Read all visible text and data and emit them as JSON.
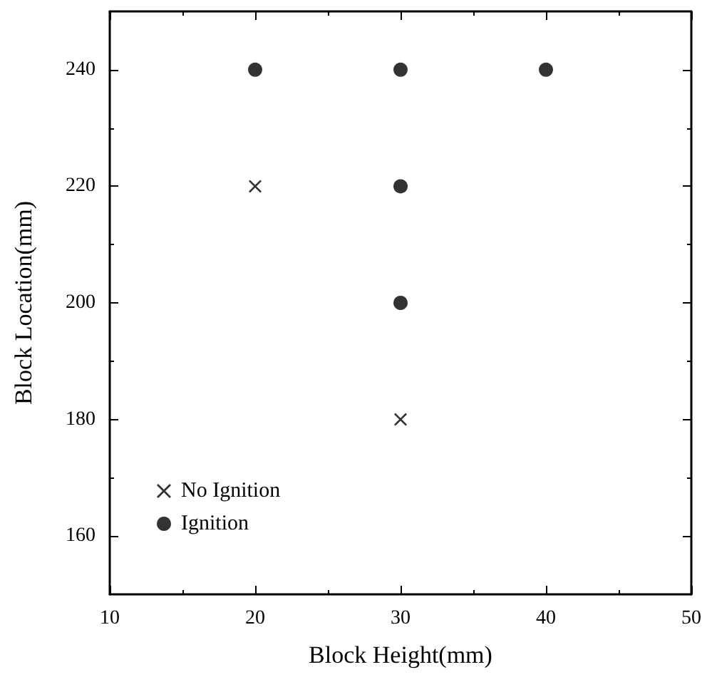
{
  "chart_data": {
    "type": "scatter",
    "xlabel": "Block Height(mm)",
    "ylabel": "Block Location(mm)",
    "xlim": [
      10,
      50
    ],
    "xticks": [
      10,
      20,
      30,
      40,
      50
    ],
    "ylim": [
      150,
      250
    ],
    "yticks": [
      160,
      180,
      200,
      220,
      240
    ],
    "grid": false,
    "legend": "bottom left",
    "series": [
      {
        "name": "No Ignition",
        "color": "#000000",
        "marker": "cross",
        "x": [
          20,
          30
        ],
        "values": [
          220,
          180
        ]
      },
      {
        "name": "Ignition",
        "color": "#000000",
        "marker": "circle",
        "x": [
          20,
          30,
          40,
          30,
          30
        ],
        "values": [
          240,
          240,
          240,
          220,
          200
        ]
      }
    ]
  }
}
